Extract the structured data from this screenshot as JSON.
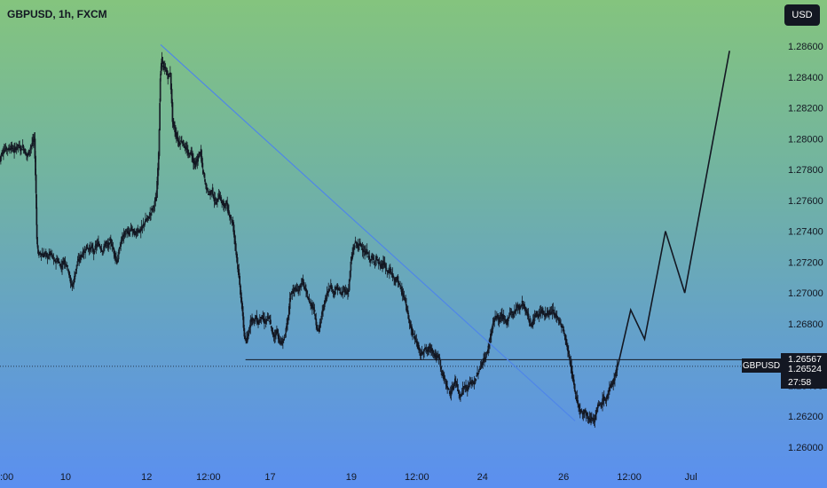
{
  "header": {
    "title": "GBPUSD, 1h, FXCM"
  },
  "toolbar": {
    "currency_label": "USD"
  },
  "chart_data": {
    "type": "candlestick",
    "symbol": "GBPUSD",
    "interval": "1h",
    "source": "FXCM",
    "y_ticks": [
      "1.28600",
      "1.28400",
      "1.28200",
      "1.28000",
      "1.27800",
      "1.27600",
      "1.27400",
      "1.27200",
      "1.27000",
      "1.26800",
      "1.26400",
      "1.26200",
      "1.26000"
    ],
    "ylim": [
      1.2592,
      1.2868
    ],
    "x_ticks": [
      ":00",
      "10",
      "12",
      "12:00",
      "17",
      "19",
      "12:00",
      "24",
      "26",
      "12:00",
      "Jul"
    ],
    "xlim": [
      0,
      1000
    ],
    "x_tick_positions": [
      0,
      85,
      190,
      270,
      350,
      455,
      540,
      625,
      730,
      815,
      895
    ],
    "close_path": [
      [
        0,
        1.2786
      ],
      [
        2,
        1.279
      ],
      [
        5,
        1.2792
      ],
      [
        8,
        1.2794
      ],
      [
        12,
        1.2793
      ],
      [
        15,
        1.2795
      ],
      [
        18,
        1.2792
      ],
      [
        21,
        1.2794
      ],
      [
        24,
        1.2796
      ],
      [
        27,
        1.2793
      ],
      [
        30,
        1.2795
      ],
      [
        33,
        1.2791
      ],
      [
        36,
        1.2789
      ],
      [
        39,
        1.2793
      ],
      [
        42,
        1.2797
      ],
      [
        45,
        1.28
      ],
      [
        47,
        1.2765
      ],
      [
        48,
        1.2735
      ],
      [
        50,
        1.2725
      ],
      [
        53,
        1.2726
      ],
      [
        56,
        1.2724
      ],
      [
        59,
        1.2726
      ],
      [
        62,
        1.2723
      ],
      [
        65,
        1.2726
      ],
      [
        68,
        1.2724
      ],
      [
        71,
        1.272
      ],
      [
        74,
        1.2722
      ],
      [
        77,
        1.2719
      ],
      [
        80,
        1.2717
      ],
      [
        83,
        1.2721
      ],
      [
        86,
        1.2719
      ],
      [
        89,
        1.2715
      ],
      [
        92,
        1.2706
      ],
      [
        95,
        1.2705
      ],
      [
        98,
        1.2714
      ],
      [
        101,
        1.272
      ],
      [
        104,
        1.2723
      ],
      [
        107,
        1.2725
      ],
      [
        110,
        1.2727
      ],
      [
        113,
        1.273
      ],
      [
        116,
        1.2728
      ],
      [
        119,
        1.273
      ],
      [
        122,
        1.2726
      ],
      [
        125,
        1.2731
      ],
      [
        128,
        1.2732
      ],
      [
        131,
        1.2729
      ],
      [
        134,
        1.2727
      ],
      [
        137,
        1.2733
      ],
      [
        140,
        1.273
      ],
      [
        143,
        1.2734
      ],
      [
        146,
        1.273
      ],
      [
        149,
        1.2725
      ],
      [
        152,
        1.272
      ],
      [
        155,
        1.2728
      ],
      [
        158,
        1.2735
      ],
      [
        161,
        1.2738
      ],
      [
        164,
        1.274
      ],
      [
        167,
        1.2738
      ],
      [
        170,
        1.2742
      ],
      [
        173,
        1.274
      ],
      [
        176,
        1.2738
      ],
      [
        179,
        1.2741
      ],
      [
        182,
        1.274
      ],
      [
        185,
        1.2743
      ],
      [
        188,
        1.2746
      ],
      [
        191,
        1.2748
      ],
      [
        194,
        1.275
      ],
      [
        197,
        1.2754
      ],
      [
        200,
        1.2757
      ],
      [
        203,
        1.2762
      ],
      [
        206,
        1.279
      ],
      [
        208,
        1.284
      ],
      [
        210,
        1.2852
      ],
      [
        212,
        1.2846
      ],
      [
        215,
        1.2845
      ],
      [
        218,
        1.284
      ],
      [
        221,
        1.2843
      ],
      [
        224,
        1.2812
      ],
      [
        227,
        1.2805
      ],
      [
        230,
        1.28
      ],
      [
        233,
        1.2797
      ],
      [
        236,
        1.2799
      ],
      [
        239,
        1.2795
      ],
      [
        242,
        1.2793
      ],
      [
        245,
        1.2789
      ],
      [
        248,
        1.2792
      ],
      [
        251,
        1.2785
      ],
      [
        254,
        1.2783
      ],
      [
        257,
        1.2788
      ],
      [
        260,
        1.2792
      ],
      [
        263,
        1.278
      ],
      [
        266,
        1.2772
      ],
      [
        269,
        1.2766
      ],
      [
        272,
        1.2764
      ],
      [
        275,
        1.2767
      ],
      [
        278,
        1.276
      ],
      [
        281,
        1.2758
      ],
      [
        284,
        1.2764
      ],
      [
        287,
        1.276
      ],
      [
        290,
        1.2756
      ],
      [
        293,
        1.2759
      ],
      [
        296,
        1.2753
      ],
      [
        299,
        1.2749
      ],
      [
        302,
        1.2745
      ],
      [
        305,
        1.2732
      ],
      [
        308,
        1.2719
      ],
      [
        311,
        1.2705
      ],
      [
        314,
        1.269
      ],
      [
        317,
        1.2672
      ],
      [
        320,
        1.2668
      ],
      [
        323,
        1.2676
      ],
      [
        326,
        1.2684
      ],
      [
        329,
        1.2682
      ],
      [
        332,
        1.2684
      ],
      [
        335,
        1.268
      ],
      [
        338,
        1.2685
      ],
      [
        341,
        1.2683
      ],
      [
        344,
        1.2681
      ],
      [
        347,
        1.2684
      ],
      [
        350,
        1.2682
      ],
      [
        353,
        1.2674
      ],
      [
        356,
        1.2672
      ],
      [
        359,
        1.2676
      ],
      [
        362,
        1.2669
      ],
      [
        365,
        1.2667
      ],
      [
        368,
        1.267
      ],
      [
        371,
        1.2676
      ],
      [
        374,
        1.2686
      ],
      [
        377,
        1.27
      ],
      [
        380,
        1.2701
      ],
      [
        383,
        1.2703
      ],
      [
        386,
        1.2701
      ],
      [
        389,
        1.2704
      ],
      [
        392,
        1.2708
      ],
      [
        395,
        1.2703
      ],
      [
        398,
        1.2699
      ],
      [
        401,
        1.2694
      ],
      [
        404,
        1.2692
      ],
      [
        407,
        1.269
      ],
      [
        410,
        1.268
      ],
      [
        413,
        1.2675
      ],
      [
        416,
        1.2683
      ],
      [
        419,
        1.269
      ],
      [
        422,
        1.2696
      ],
      [
        425,
        1.2701
      ],
      [
        428,
        1.2705
      ],
      [
        431,
        1.2702
      ],
      [
        434,
        1.27
      ],
      [
        437,
        1.2704
      ],
      [
        440,
        1.2701
      ],
      [
        443,
        1.2699
      ],
      [
        446,
        1.2703
      ],
      [
        449,
        1.27
      ],
      [
        452,
        1.2702
      ],
      [
        455,
        1.272
      ],
      [
        458,
        1.2728
      ],
      [
        461,
        1.2733
      ],
      [
        464,
        1.273
      ],
      [
        467,
        1.2732
      ],
      [
        470,
        1.2729
      ],
      [
        473,
        1.2725
      ],
      [
        476,
        1.2727
      ],
      [
        479,
        1.2721
      ],
      [
        482,
        1.2723
      ],
      [
        485,
        1.272
      ],
      [
        488,
        1.2723
      ],
      [
        491,
        1.2719
      ],
      [
        494,
        1.2717
      ],
      [
        497,
        1.272
      ],
      [
        500,
        1.2716
      ],
      [
        503,
        1.2713
      ],
      [
        506,
        1.2715
      ],
      [
        509,
        1.2711
      ],
      [
        512,
        1.2707
      ],
      [
        515,
        1.271
      ],
      [
        518,
        1.2705
      ],
      [
        521,
        1.27
      ],
      [
        524,
        1.2697
      ],
      [
        527,
        1.269
      ],
      [
        530,
        1.2684
      ],
      [
        533,
        1.2677
      ],
      [
        536,
        1.2672
      ],
      [
        539,
        1.267
      ],
      [
        542,
        1.2665
      ],
      [
        545,
        1.266
      ],
      [
        548,
        1.2662
      ],
      [
        551,
        1.2664
      ],
      [
        554,
        1.2662
      ],
      [
        557,
        1.2665
      ],
      [
        560,
        1.2663
      ],
      [
        563,
        1.266
      ],
      [
        566,
        1.2658
      ],
      [
        569,
        1.2659
      ],
      [
        572,
        1.265
      ],
      [
        575,
        1.2645
      ],
      [
        578,
        1.2642
      ],
      [
        581,
        1.2637
      ],
      [
        584,
        1.2635
      ],
      [
        587,
        1.2638
      ],
      [
        590,
        1.2644
      ],
      [
        593,
        1.2638
      ],
      [
        596,
        1.2633
      ],
      [
        599,
        1.2636
      ],
      [
        602,
        1.264
      ],
      [
        605,
        1.2638
      ],
      [
        608,
        1.264
      ],
      [
        611,
        1.2643
      ],
      [
        614,
        1.2641
      ],
      [
        617,
        1.2645
      ],
      [
        620,
        1.2649
      ],
      [
        623,
        1.2652
      ],
      [
        626,
        1.2656
      ],
      [
        629,
        1.2658
      ],
      [
        632,
        1.2662
      ],
      [
        635,
        1.267
      ],
      [
        638,
        1.2678
      ],
      [
        641,
        1.2683
      ],
      [
        644,
        1.2685
      ],
      [
        647,
        1.2682
      ],
      [
        650,
        1.2686
      ],
      [
        653,
        1.2683
      ],
      [
        656,
        1.2681
      ],
      [
        659,
        1.2684
      ],
      [
        662,
        1.2688
      ],
      [
        665,
        1.2686
      ],
      [
        668,
        1.2689
      ],
      [
        671,
        1.2692
      ],
      [
        674,
        1.269
      ],
      [
        677,
        1.2694
      ],
      [
        680,
        1.269
      ],
      [
        683,
        1.2687
      ],
      [
        686,
        1.2682
      ],
      [
        689,
        1.2679
      ],
      [
        692,
        1.2683
      ],
      [
        695,
        1.2687
      ],
      [
        698,
        1.2685
      ],
      [
        701,
        1.2689
      ],
      [
        704,
        1.2687
      ],
      [
        707,
        1.2685
      ],
      [
        710,
        1.2688
      ],
      [
        713,
        1.2686
      ],
      [
        716,
        1.2688
      ],
      [
        719,
        1.2686
      ],
      [
        722,
        1.2684
      ],
      [
        725,
        1.2682
      ],
      [
        728,
        1.2678
      ],
      [
        731,
        1.2674
      ],
      [
        734,
        1.2667
      ],
      [
        737,
        1.266
      ],
      [
        740,
        1.2652
      ],
      [
        743,
        1.2643
      ],
      [
        746,
        1.2634
      ],
      [
        749,
        1.2628
      ],
      [
        752,
        1.2624
      ],
      [
        755,
        1.2622
      ],
      [
        758,
        1.2624
      ],
      [
        761,
        1.262
      ],
      [
        764,
        1.2618
      ],
      [
        767,
        1.262
      ],
      [
        770,
        1.2616
      ],
      [
        773,
        1.2623
      ],
      [
        776,
        1.2628
      ],
      [
        779,
        1.2627
      ],
      [
        782,
        1.2632
      ],
      [
        785,
        1.263
      ],
      [
        788,
        1.2635
      ],
      [
        791,
        1.2639
      ],
      [
        794,
        1.2642
      ],
      [
        797,
        1.2646
      ],
      [
        800,
        1.26524
      ]
    ],
    "trendline": [
      [
        208,
        1.2861
      ],
      [
        745,
        1.2617
      ]
    ],
    "support_line": {
      "x_start": 318,
      "price": 1.26567
    },
    "projection_path": [
      [
        800,
        1.2652
      ],
      [
        817,
        1.2689
      ],
      [
        835,
        1.267
      ],
      [
        862,
        1.274
      ],
      [
        887,
        1.27
      ],
      [
        945,
        1.2857
      ]
    ],
    "last_price_line": 1.26524,
    "price_tags": {
      "support": "1.26567",
      "last": "1.26524",
      "countdown": "27:58",
      "partial_tick": "1.26400"
    },
    "symbol_tag": "GBPUSD",
    "grid": false,
    "colors": {
      "candle": "#131722",
      "trendline": "#4f86e8",
      "projection": "#131722",
      "tag_bg": "#131722"
    }
  }
}
